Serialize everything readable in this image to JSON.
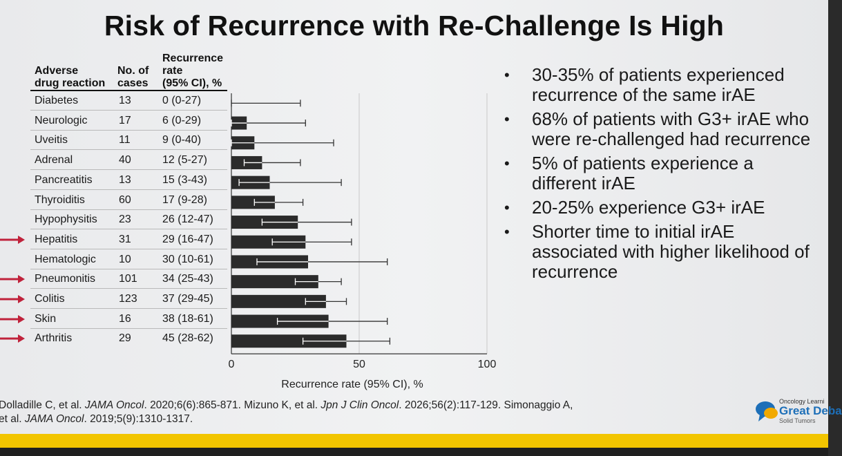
{
  "title": "Risk of Recurrence with Re-Challenge Is High",
  "table": {
    "headers": {
      "reaction": [
        "Adverse",
        "drug reaction"
      ],
      "cases": [
        "No. of",
        "cases"
      ],
      "rate": [
        "Recurrence",
        "rate",
        "(95% CI), %"
      ]
    },
    "rows": [
      {
        "reaction": "Diabetes",
        "cases": "13",
        "rate": "0 (0-27)",
        "arrow": false
      },
      {
        "reaction": "Neurologic",
        "cases": "17",
        "rate": "6 (0-29)",
        "arrow": false
      },
      {
        "reaction": "Uveitis",
        "cases": "11",
        "rate": "9 (0-40)",
        "arrow": false
      },
      {
        "reaction": "Adrenal",
        "cases": "40",
        "rate": "12 (5-27)",
        "arrow": false
      },
      {
        "reaction": "Pancreatitis",
        "cases": "13",
        "rate": "15 (3-43)",
        "arrow": false
      },
      {
        "reaction": "Thyroiditis",
        "cases": "60",
        "rate": "17 (9-28)",
        "arrow": false
      },
      {
        "reaction": "Hypophysitis",
        "cases": "23",
        "rate": "26 (12-47)",
        "arrow": false
      },
      {
        "reaction": "Hepatitis",
        "cases": "31",
        "rate": "29 (16-47)",
        "arrow": true
      },
      {
        "reaction": "Hematologic",
        "cases": "10",
        "rate": "30 (10-61)",
        "arrow": false
      },
      {
        "reaction": "Pneumonitis",
        "cases": "101",
        "rate": "34 (25-43)",
        "arrow": true
      },
      {
        "reaction": "Colitis",
        "cases": "123",
        "rate": "37 (29-45)",
        "arrow": true
      },
      {
        "reaction": "Skin",
        "cases": "16",
        "rate": "38 (18-61)",
        "arrow": true
      },
      {
        "reaction": "Arthritis",
        "cases": "29",
        "rate": "45 (28-62)",
        "arrow": true
      }
    ]
  },
  "chart_data": {
    "type": "bar",
    "orientation": "horizontal",
    "categories": [
      "Diabetes",
      "Neurologic",
      "Uveitis",
      "Adrenal",
      "Pancreatitis",
      "Thyroiditis",
      "Hypophysitis",
      "Hepatitis",
      "Hematologic",
      "Pneumonitis",
      "Colitis",
      "Skin",
      "Arthritis"
    ],
    "values": [
      0,
      6,
      9,
      12,
      15,
      17,
      26,
      29,
      30,
      34,
      37,
      38,
      45
    ],
    "ci_low": [
      0,
      0,
      0,
      5,
      3,
      9,
      12,
      16,
      10,
      25,
      29,
      18,
      28
    ],
    "ci_high": [
      27,
      29,
      40,
      27,
      43,
      28,
      47,
      47,
      61,
      43,
      45,
      61,
      62
    ],
    "xlabel": "Recurrence rate (95% CI), %",
    "xlim": [
      0,
      100
    ],
    "xticks": [
      0,
      50,
      100
    ],
    "grid": "vertical gridline at 50",
    "bar_color": "#2b2b2b",
    "arrow_color": "#c0223b"
  },
  "bullets": [
    "30-35% of patients experienced recurrence of the same irAE",
    "68% of patients with G3+ irAE who were re-challenged had recurrence",
    "5% of patients experience a different irAE",
    "20-25% experience G3+ irAE",
    "Shorter time to initial irAE associated with higher likelihood of recurrence"
  ],
  "bullet_symbol": "•",
  "references": {
    "ref1_authors": "Dolladille C, et al. ",
    "ref1_journal": "JAMA Oncol",
    "ref1_rest": ". 2020;6(6):865-871. Mizuno K, et al. ",
    "ref2_journal": "Jpn J Clin Oncol",
    "ref2_rest": ". 2026;56(2):117-129. Simonaggio A,",
    "ref3_authors": "et al. ",
    "ref3_journal": "JAMA Oncol",
    "ref3_rest": ". 2019;5(9):1310-1317."
  },
  "logo": {
    "line1": "Oncology Learni",
    "line2": "Great Deba",
    "line3": "Solid Tumors",
    "colors": [
      "#1d6fb8",
      "#f2a900"
    ]
  }
}
